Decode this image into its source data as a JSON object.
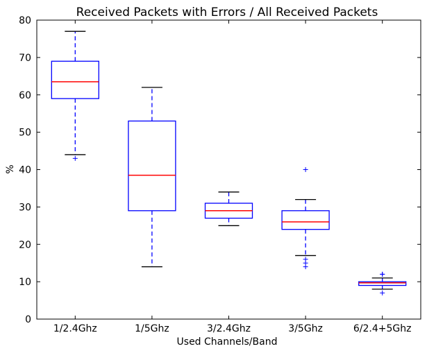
{
  "chart_data": {
    "type": "box",
    "title": "Received Packets with Errors / All Received Packets",
    "xlabel": "Used Channels/Band",
    "ylabel": "%",
    "ylim": [
      0,
      80
    ],
    "yticks": [
      0,
      10,
      20,
      30,
      40,
      50,
      60,
      70,
      80
    ],
    "grid": false,
    "categories": [
      "1/2.4Ghz",
      "1/5Ghz",
      "3/2.4Ghz",
      "3/5Ghz",
      "6/2.4+5Ghz"
    ],
    "boxes": [
      {
        "category": "1/2.4Ghz",
        "whisker_low": 44,
        "q1": 59,
        "median": 63.5,
        "q3": 69,
        "whisker_high": 77,
        "outliers": [
          43
        ]
      },
      {
        "category": "1/5Ghz",
        "whisker_low": 14,
        "q1": 29,
        "median": 38.5,
        "q3": 53,
        "whisker_high": 62,
        "outliers": []
      },
      {
        "category": "3/2.4Ghz",
        "whisker_low": 25,
        "q1": 27,
        "median": 29,
        "q3": 31,
        "whisker_high": 34,
        "outliers": []
      },
      {
        "category": "3/5Ghz",
        "whisker_low": 17,
        "q1": 24,
        "median": 26,
        "q3": 29,
        "whisker_high": 32,
        "outliers": [
          40,
          16,
          15,
          14
        ]
      },
      {
        "category": "6/2.4+5Ghz",
        "whisker_low": 8,
        "q1": 9,
        "median": 9.7,
        "q3": 10,
        "whisker_high": 11,
        "outliers": [
          12,
          12,
          7
        ]
      }
    ],
    "colors": {
      "box": "#0000ff",
      "median": "#ff0000",
      "whisker_cap": "#000000",
      "outlier": "#0000ff"
    }
  }
}
